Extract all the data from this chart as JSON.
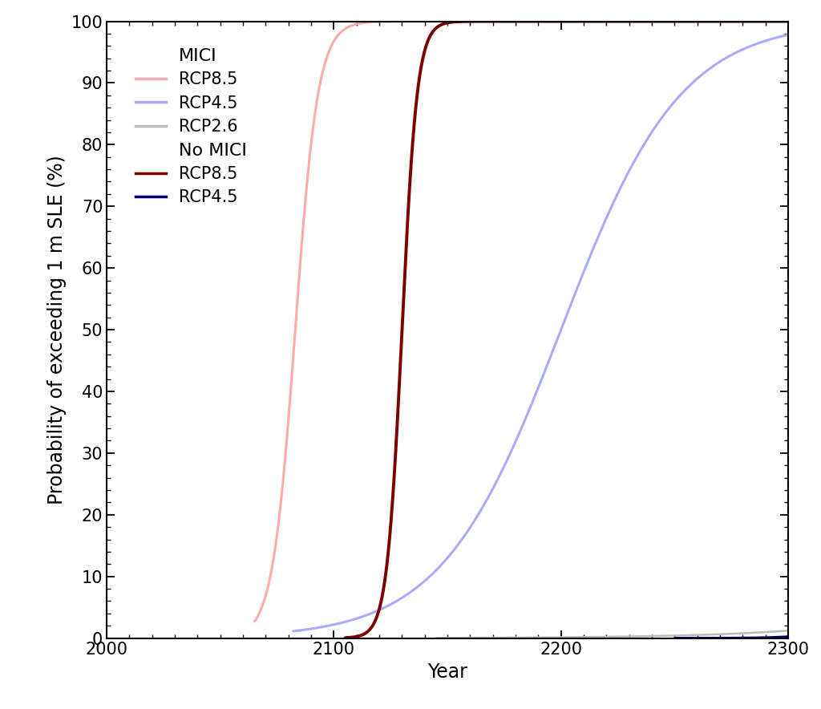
{
  "xlabel": "Year",
  "ylabel": "Probability of exceeding 1 m SLE (%)",
  "xlim": [
    2000,
    2300
  ],
  "ylim": [
    0,
    100
  ],
  "xticks": [
    2000,
    2100,
    2200,
    2300
  ],
  "yticks": [
    0,
    10,
    20,
    30,
    40,
    50,
    60,
    70,
    80,
    90,
    100
  ],
  "curves": {
    "mici_rcp85": {
      "color": "#FFAAAA",
      "lw": 2.2,
      "midpoint": 2083,
      "steepness": 0.2,
      "clip_start": 2065,
      "max_val": 100
    },
    "mici_rcp45": {
      "color": "#AAAAFF",
      "lw": 2.2,
      "midpoint": 2200,
      "steepness": 0.038,
      "clip_start": 2082,
      "max_val": 100
    },
    "mici_rcp26": {
      "color": "#BBBBBB",
      "lw": 1.8,
      "midpoint": 2500,
      "steepness": 0.022,
      "clip_start": 2145,
      "max_val": 100
    },
    "nomici_rcp85": {
      "color": "#7B0000",
      "lw": 2.8,
      "midpoint": 2130,
      "steepness": 0.3,
      "clip_start": 2105,
      "max_val": 100
    },
    "nomici_rcp45": {
      "color": "#00007B",
      "lw": 2.2,
      "midpoint": 2360,
      "steepness": 0.1,
      "clip_start": 2250,
      "max_val": 100
    }
  },
  "background_color": "#FFFFFF",
  "tick_fontsize": 15,
  "label_fontsize": 17,
  "legend_fontsize": 15
}
